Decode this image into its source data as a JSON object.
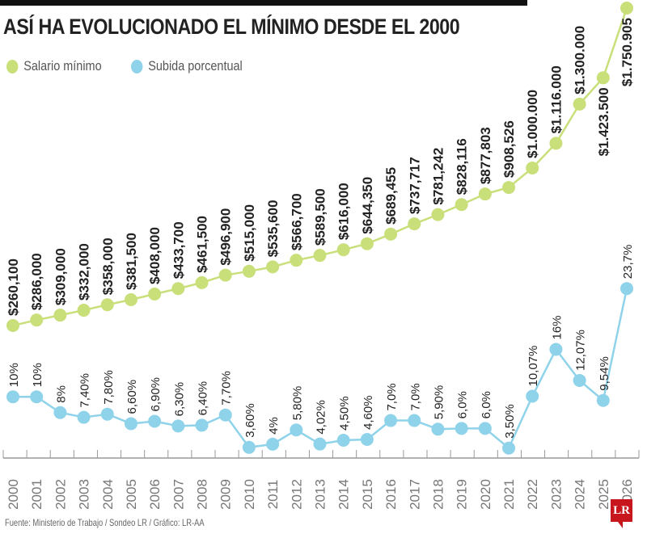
{
  "title": "ASÍ HA EVOLUCIONADO EL MÍNIMO DESDE EL 2000",
  "source": "Fuente: Ministerio de Trabajo / Sondeo LR / Gráfico: LR-AA",
  "logo": "LR",
  "chart_data": {
    "type": "line",
    "title": "ASÍ HA EVOLUCIONADO EL MÍNIMO DESDE EL 2000",
    "legend_placement": "top-left",
    "grid": false,
    "x": [
      "2000",
      "2001",
      "2002",
      "2003",
      "2004",
      "2005",
      "2006",
      "2007",
      "2008",
      "2009",
      "2010",
      "2011",
      "2012",
      "2013",
      "2014",
      "2015",
      "2016",
      "2017",
      "2018",
      "2019",
      "2020",
      "2021",
      "2022",
      "2023",
      "2024",
      "2025",
      "2026"
    ],
    "series": [
      {
        "name": "Salario mínimo",
        "color": "#c9df7a",
        "values": [
          260100,
          286000,
          309000,
          332000,
          358000,
          381500,
          408000,
          433700,
          461500,
          496900,
          515000,
          535600,
          566700,
          589500,
          616000,
          644350,
          689455,
          737717,
          781242,
          828116,
          877803,
          908526,
          1000000,
          1116000,
          1300000,
          1423500,
          1750905
        ],
        "labels": [
          "$260,100",
          "$286,000",
          "$309,000",
          "$332,000",
          "$358,000",
          "$381,500",
          "$408,000",
          "$433,700",
          "$461,500",
          "$496,900",
          "$515,000",
          "$535,600",
          "$566,700",
          "$589,500",
          "$616,000",
          "$644,350",
          "$689,455",
          "$737,717",
          "$781,242",
          "$828,116",
          "$877,803",
          "$908,526",
          "$1.000.000",
          "$1.116.000",
          "$1.300.000",
          "$1.423.500",
          "$1.750.905"
        ]
      },
      {
        "name": "Subida porcentual",
        "color": "#8fd3ea",
        "values": [
          10,
          10,
          8,
          7.4,
          7.8,
          6.6,
          6.9,
          6.3,
          6.4,
          7.7,
          3.6,
          4,
          5.8,
          4.02,
          4.5,
          4.6,
          7.0,
          7.0,
          5.9,
          6.0,
          6.0,
          3.5,
          10.07,
          16,
          12.07,
          9.54,
          23.7
        ],
        "labels": [
          "10%",
          "10%",
          "8%",
          "7,40%",
          "7,80%",
          "6,60%",
          "6,90%",
          "6,30%",
          "6,40%",
          "7,70%",
          "3,60%",
          "4%",
          "5,80%",
          "4,02%",
          "4,50%",
          "4,60%",
          "7,0%",
          "7,0%",
          "5,90%",
          "6,0%",
          "6,0%",
          "3,50%",
          "10,07%",
          "16%",
          "12,07%",
          "9,54%",
          "23,7%"
        ]
      }
    ]
  }
}
